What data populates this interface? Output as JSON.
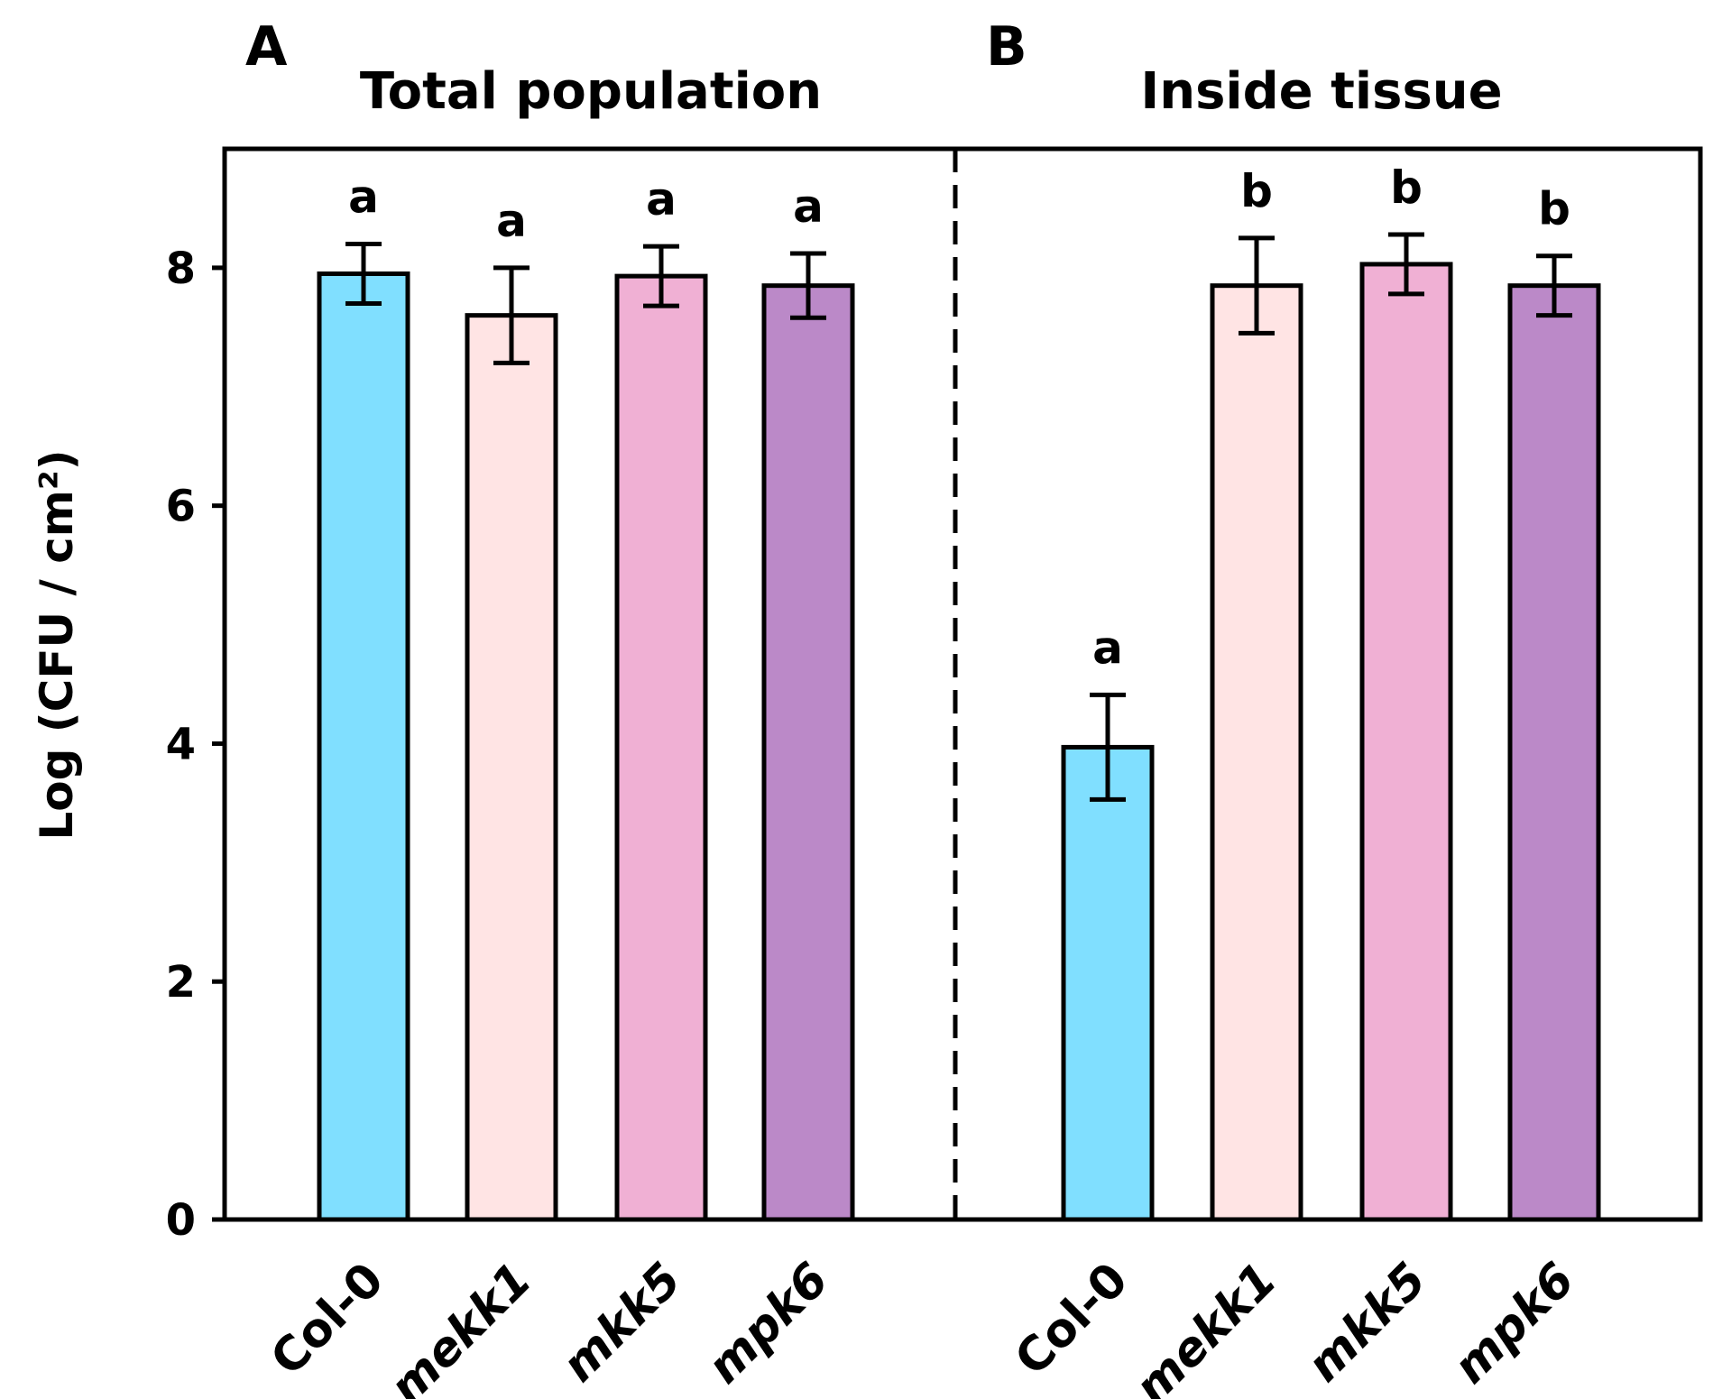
{
  "chart_data": {
    "type": "bar",
    "ylabel": "Log (CFU / cm²)",
    "ylim": [
      0,
      9
    ],
    "yticks": [
      0,
      2,
      4,
      6,
      8
    ],
    "grid": false,
    "panels": [
      {
        "letter": "A",
        "title": "Total population",
        "categories": [
          "Col-0",
          "mekk1",
          "mkk5",
          "mpk6"
        ],
        "values": [
          7.95,
          7.6,
          7.93,
          7.85
        ],
        "errors": [
          0.25,
          0.4,
          0.25,
          0.27
        ],
        "significance": [
          "a",
          "a",
          "a",
          "a"
        ],
        "colors": [
          "#80dfff",
          "#ffe4e4",
          "#f0b0d4",
          "#bb89c8"
        ]
      },
      {
        "letter": "B",
        "title": "Inside tissue",
        "categories": [
          "Col-0",
          "mekk1",
          "mkk5",
          "mpk6"
        ],
        "values": [
          3.97,
          7.85,
          8.03,
          7.85
        ],
        "errors": [
          0.44,
          0.4,
          0.25,
          0.25
        ],
        "significance": [
          "a",
          "b",
          "b",
          "b"
        ],
        "colors": [
          "#80dfff",
          "#ffe4e4",
          "#f0b0d4",
          "#bb89c8"
        ]
      }
    ]
  }
}
